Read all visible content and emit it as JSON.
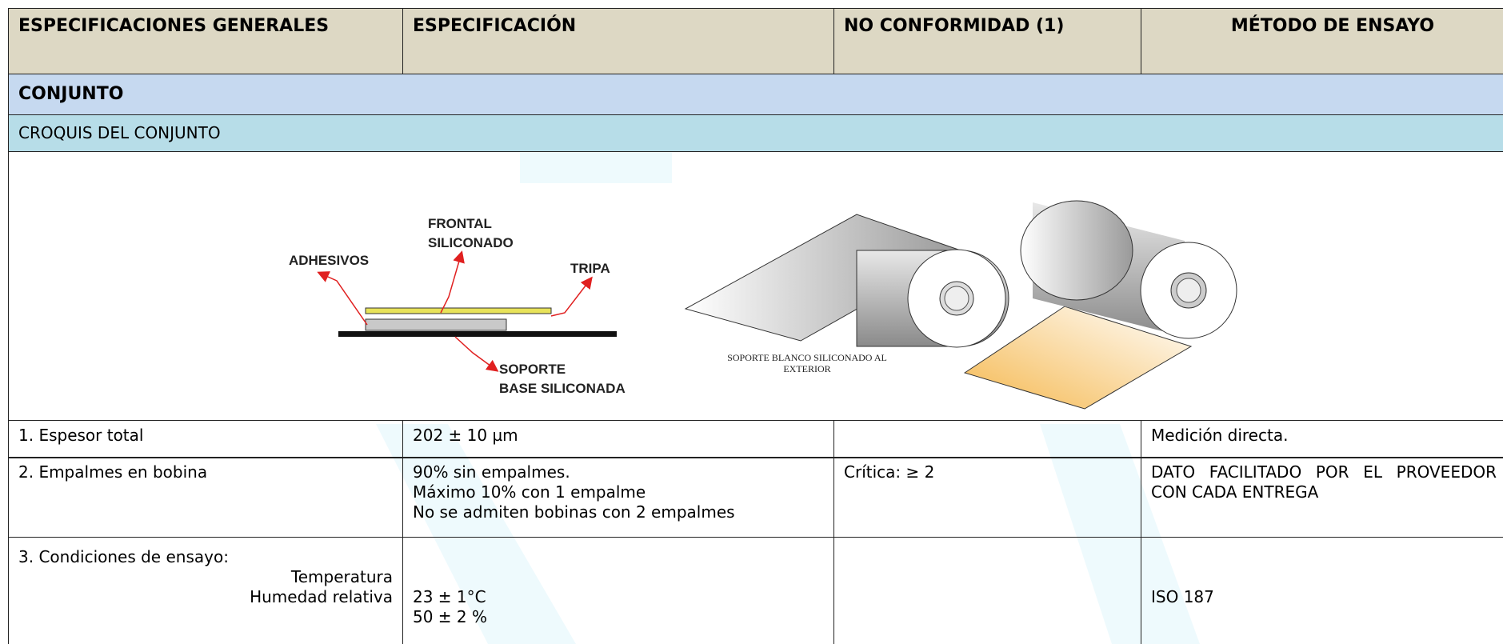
{
  "header": {
    "columns": [
      "ESPECIFICACIONES GENERALES",
      "ESPECIFICACIÓN",
      "NO CONFORMIDAD (1)",
      "MÉTODO DE ENSAYO"
    ]
  },
  "section": {
    "title": "CONJUNTO",
    "subtitle": "CROQUIS DEL CONJUNTO"
  },
  "figure": {
    "layers": {
      "frontal": [
        "FRONTAL",
        "SILICONADO"
      ],
      "adhesive": "ADHESIVOS",
      "tripa": "TRIPA",
      "base": [
        "SOPORTE",
        "BASE SILICONADA"
      ]
    },
    "roll_caption": [
      "SOPORTE BLANCO SILICONADO AL",
      "EXTERIOR"
    ]
  },
  "rows": [
    {
      "general": [
        "1. Espesor total"
      ],
      "spec": [
        "202 ± 10 µm"
      ],
      "nonconformity": "",
      "method": "Medición directa."
    },
    {
      "general": [
        "2. Empalmes en bobina"
      ],
      "spec": [
        "90% sin empalmes.",
        "Máximo 10% con 1 empalme",
        "No se admiten bobinas con 2 empalmes"
      ],
      "nonconformity": "Crítica: ≥ 2",
      "method": "DATO FACILITADO POR EL PROVEEDOR CON CADA ENTREGA"
    },
    {
      "general": [
        "3. Condiciones de ensayo:",
        "Temperatura",
        "Humedad relativa"
      ],
      "spec": [
        "23 ± 1°C",
        "50 ± 2 %"
      ],
      "nonconformity": "",
      "method": "ISO 187"
    }
  ]
}
